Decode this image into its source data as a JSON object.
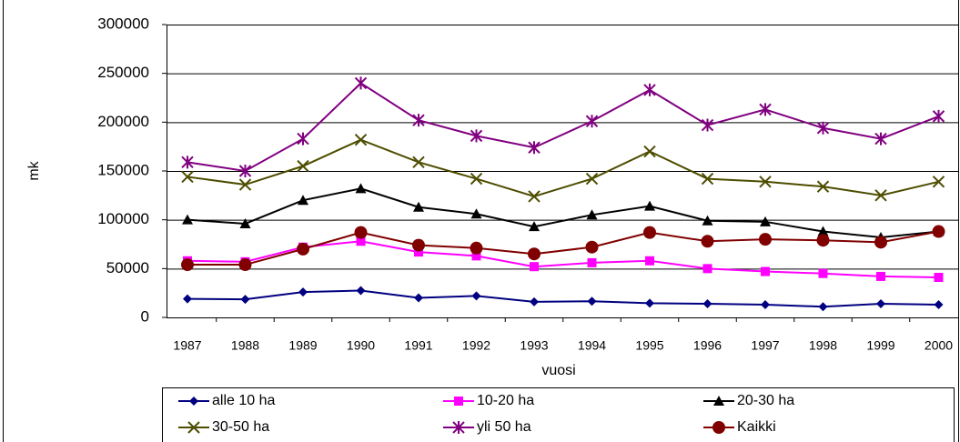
{
  "chart_data": {
    "type": "line",
    "xlabel": "vuosi",
    "ylabel": "mk",
    "categories": [
      "1987",
      "1988",
      "1989",
      "1990",
      "1991",
      "1992",
      "1993",
      "1994",
      "1995",
      "1996",
      "1997",
      "1998",
      "1999",
      "2000"
    ],
    "ylim": [
      0,
      300000
    ],
    "yticks": [
      0,
      50000,
      100000,
      150000,
      200000,
      250000,
      300000
    ],
    "grid": true,
    "legend": "bottom",
    "series": [
      {
        "name": "alle 10 ha",
        "color": "#000080",
        "marker": "diamond",
        "values": [
          19000,
          18500,
          26000,
          27500,
          20000,
          22000,
          16000,
          16500,
          14500,
          14000,
          13000,
          11000,
          14000,
          13000
        ]
      },
      {
        "name": "10-20 ha",
        "color": "#ff00ff",
        "marker": "square",
        "values": [
          58000,
          57000,
          72000,
          78000,
          67000,
          63000,
          52000,
          56000,
          58000,
          50000,
          47000,
          45000,
          42000,
          41000
        ]
      },
      {
        "name": "20-30 ha",
        "color": "#000000",
        "marker": "triangle",
        "values": [
          100000,
          96000,
          120000,
          132000,
          113000,
          106000,
          93000,
          105000,
          114000,
          99000,
          98000,
          88000,
          82000,
          88000
        ]
      },
      {
        "name": "30-50 ha",
        "color": "#4d4d00",
        "marker": "x",
        "values": [
          144000,
          136000,
          155000,
          182000,
          159000,
          142000,
          124000,
          142000,
          170000,
          142000,
          139000,
          134000,
          125000,
          139000
        ]
      },
      {
        "name": "yli 50 ha",
        "color": "#800080",
        "marker": "star",
        "values": [
          159000,
          150000,
          183000,
          240000,
          202000,
          186000,
          174000,
          201000,
          233000,
          197000,
          213000,
          194000,
          183000,
          206000
        ]
      },
      {
        "name": "Kaikki",
        "color": "#800000",
        "marker": "circle",
        "values": [
          54000,
          54000,
          70000,
          87000,
          74000,
          71000,
          65000,
          72000,
          87000,
          78000,
          80000,
          79000,
          77000,
          88000
        ]
      }
    ]
  }
}
